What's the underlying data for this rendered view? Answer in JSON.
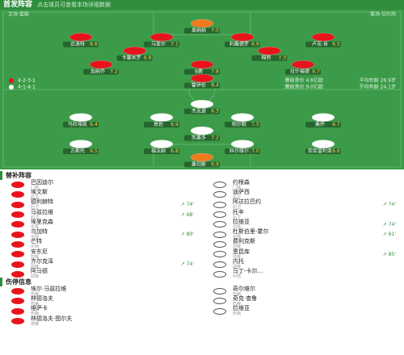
{
  "header": {
    "title": "首发阵容",
    "subtitle": "点击球员可查看本场详细数据"
  },
  "pitch": {
    "home": {
      "name": "曼联",
      "label": "主场·曼联",
      "formation": "4-2-3-1",
      "info": "赛前身价 4.6亿欧",
      "age": "平均年龄 26.9岁",
      "rows": [
        [
          {
            "name": "奥纳纳",
            "rating": "7.0"
          }
        ],
        [
          {
            "name": "达洛特",
            "rating": "6.6"
          },
          {
            "name": "马奎尔",
            "rating": "7.1"
          },
          {
            "name": "利桑德罗",
            "rating": "6.9"
          },
          {
            "name": "卢克·肖",
            "rating": "6.5"
          }
        ],
        [
          {
            "name": "卡塞米罗",
            "rating": "6.8"
          },
          {
            "name": "梅努",
            "rating": "7.3"
          }
        ],
        [
          {
            "name": "加纳乔",
            "rating": "7.2"
          },
          {
            "name": "B费",
            "rating": "7.8"
          },
          {
            "name": "拉什福德",
            "rating": "6.7"
          }
        ],
        [
          {
            "name": "霍伊伦",
            "rating": "6.4"
          }
        ]
      ]
    },
    "away": {
      "name": "切尔西",
      "label": "客场·切尔西",
      "formation": "4-1-4-1",
      "info": "赛前身价 9.0亿欧",
      "age": "平均年龄 24.1岁",
      "rows": [
        [
          {
            "name": "桑切斯",
            "rating": "6.9"
          }
        ],
        [
          {
            "name": "古斯托",
            "rating": "6.5"
          },
          {
            "name": "福法纳",
            "rating": "6.8"
          },
          {
            "name": "科尔维尔",
            "rating": "7.0"
          },
          {
            "name": "库库雷利亚",
            "rating": "6.6"
          }
        ],
        [
          {
            "name": "凯塞多",
            "rating": "7.2"
          }
        ],
        [
          {
            "name": "马杜埃凯",
            "rating": "6.4"
          },
          {
            "name": "恩佐",
            "rating": "6.9"
          },
          {
            "name": "帕尔默",
            "rating": "7.5"
          },
          {
            "name": "桑乔",
            "rating": "6.7"
          }
        ],
        [
          {
            "name": "杰克逊",
            "rating": "6.3"
          }
        ]
      ]
    }
  },
  "subs": {
    "title": "替补阵容",
    "home": [
      {
        "name": "巴因迪尔",
        "pos": "门将"
      },
      {
        "name": "埃文斯",
        "pos": "后卫"
      },
      {
        "name": "德利赫特",
        "pos": "后卫",
        "event": "↗ 74'"
      },
      {
        "name": "马兹拉维",
        "pos": "后卫",
        "event": "↗ 68'"
      },
      {
        "name": "埃里克森",
        "pos": "中场"
      },
      {
        "name": "乌加特",
        "pos": "中场",
        "event": "↗ 80'"
      },
      {
        "name": "芒特",
        "pos": "中场"
      },
      {
        "name": "安东尼",
        "pos": "前锋"
      },
      {
        "name": "齐尔克泽",
        "pos": "前锋",
        "event": "↗ 74'"
      },
      {
        "name": "阿马德",
        "pos": "前锋"
      }
    ],
    "away": [
      {
        "name": "约根森",
        "pos": "门将"
      },
      {
        "name": "迪萨西",
        "pos": "后卫"
      },
      {
        "name": "阿达拉巴约",
        "pos": "后卫",
        "event": "↗ 74'"
      },
      {
        "name": "托辛",
        "pos": "后卫"
      },
      {
        "name": "拉维亚",
        "pos": "中场",
        "event": "↗ 74'"
      },
      {
        "name": "杜斯伯里-霍尔",
        "pos": "中场",
        "event": "↗ 61'"
      },
      {
        "name": "费利克斯",
        "pos": "前锋"
      },
      {
        "name": "恩昆库",
        "pos": "前锋",
        "event": "↗ 85'"
      },
      {
        "name": "内托",
        "pos": "前锋"
      },
      {
        "name": "马丁-卡尔...",
        "pos": "中场"
      }
    ]
  },
  "injuries": {
    "title": "伤停信息",
    "home": [
      {
        "name": "埃尔·马兹拉维",
        "reason": "伤病"
      },
      {
        "name": "林德洛夫",
        "reason": "伤病"
      },
      {
        "name": "维萨卡",
        "reason": "伤病"
      },
      {
        "name": "林德洛夫·图尔夫",
        "reason": "停赛"
      }
    ],
    "away": [
      {
        "name": "奇尔维尔",
        "reason": "伤病"
      },
      {
        "name": "奇克·查鲁",
        "reason": "伤病"
      },
      {
        "name": "拉维亚",
        "reason": "伤病"
      }
    ]
  }
}
